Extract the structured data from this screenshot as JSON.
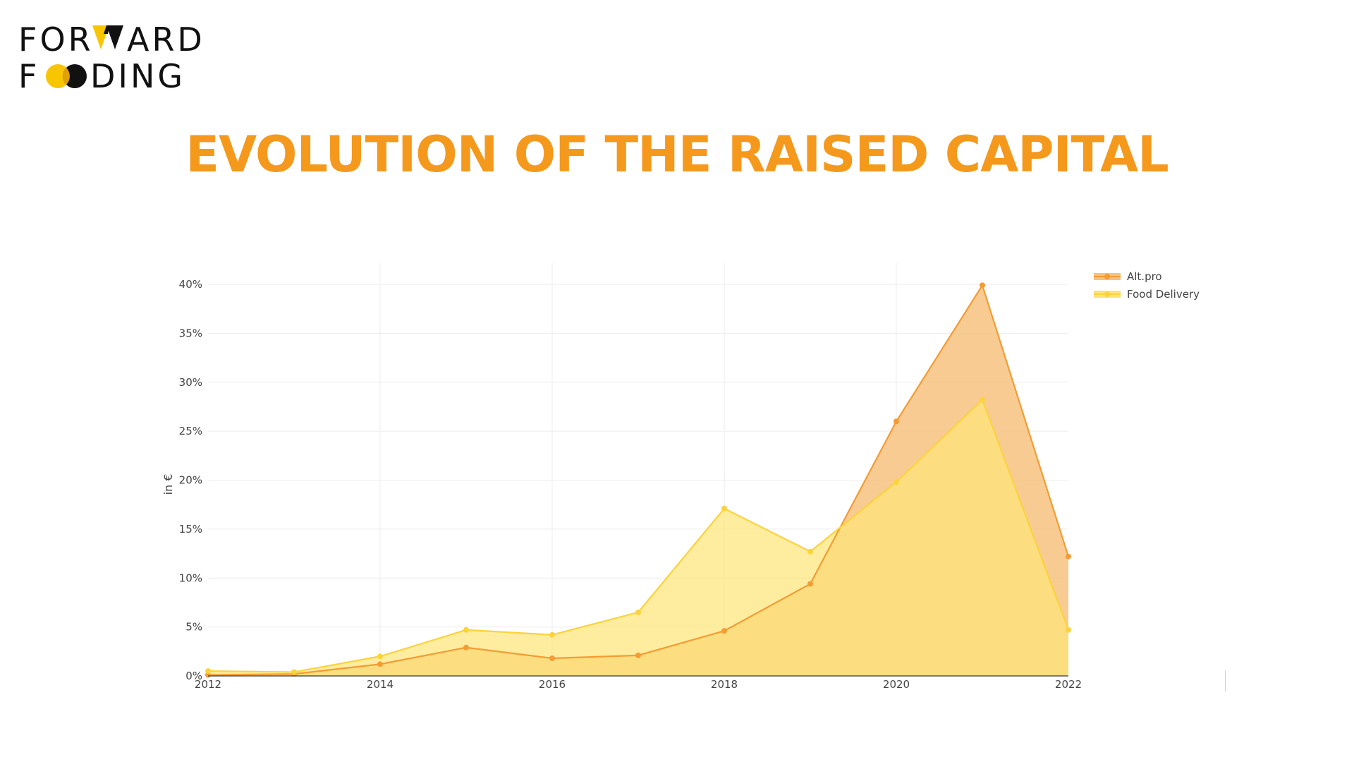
{
  "logo": {
    "line1_left": "FOR",
    "line1_right": "ARD",
    "line2_left": "F",
    "line2_right": "DING",
    "colors": {
      "text": "#111111",
      "yellow": "#f7c600",
      "black": "#111111"
    }
  },
  "title": "EVOLUTION OF THE RAISED CAPITAL",
  "chart_data": {
    "type": "area",
    "title": "",
    "xlabel": "",
    "ylabel": "in €",
    "x": [
      2012,
      2013,
      2014,
      2015,
      2016,
      2017,
      2018,
      2019,
      2020,
      2021,
      2022
    ],
    "x_ticks": [
      "2012",
      "2014",
      "2016",
      "2018",
      "2020",
      "2022"
    ],
    "xlim": [
      2012,
      2022
    ],
    "y_ticks": [
      "0%",
      "5%",
      "10%",
      "15%",
      "20%",
      "25%",
      "30%",
      "35%",
      "40%"
    ],
    "ylim": [
      0,
      40
    ],
    "grid": true,
    "legend_position": "top-right",
    "series": [
      {
        "name": "Alt.pro",
        "color": "#f39c33",
        "fill": "#f6c27f",
        "values": [
          0.1,
          0.2,
          1.2,
          2.9,
          1.8,
          2.1,
          4.6,
          9.4,
          26.0,
          39.9,
          12.2
        ]
      },
      {
        "name": "Food Delivery",
        "color": "#fbd33c",
        "fill": "#fde47a",
        "values": [
          0.5,
          0.4,
          2.0,
          4.7,
          4.2,
          6.5,
          17.1,
          12.7,
          19.8,
          28.2,
          4.7
        ]
      }
    ]
  }
}
